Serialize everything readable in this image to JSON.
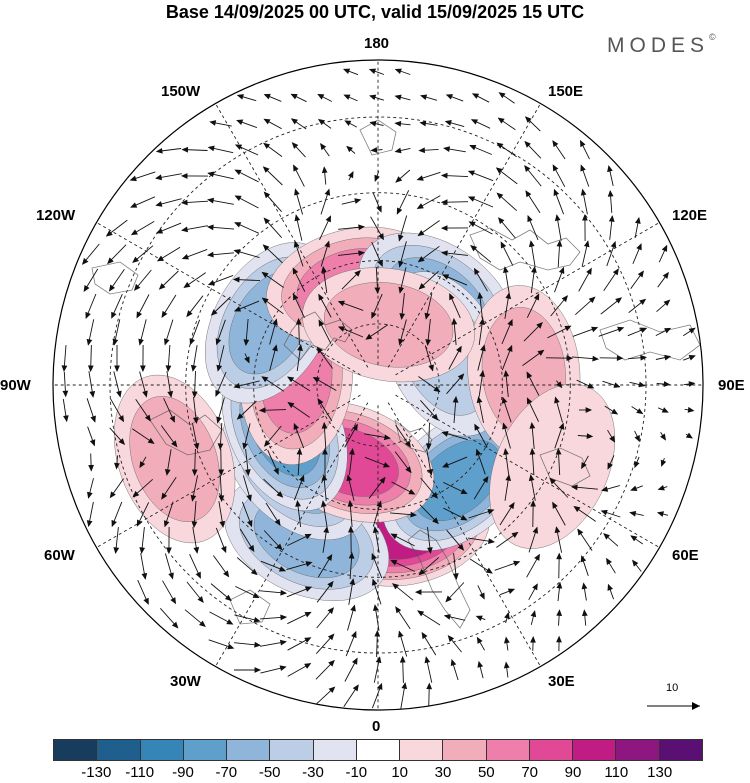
{
  "title": "Base 14/09/2025 00 UTC, valid 15/09/2025 15 UTC",
  "logo_text": "MODES",
  "logo_mark": "©",
  "longitude_labels": {
    "lon_180": "180",
    "lon_150E": "150E",
    "lon_120E": "120E",
    "lon_90E": "90E",
    "lon_60E": "60E",
    "lon_30E": "30E",
    "lon_0": "0",
    "lon_30W": "30W",
    "lon_60W": "60W",
    "lon_90W": "90W",
    "lon_120W": "120W",
    "lon_150W": "150W"
  },
  "vector_scale": {
    "value": "10"
  },
  "colorbar": {
    "colors": [
      "#173c5e",
      "#1f5f8e",
      "#3585b8",
      "#5f9fcb",
      "#8fb6da",
      "#bccde6",
      "#e2e3f1",
      "#ffffff",
      "#f8d8dc",
      "#f2adbb",
      "#ee7fab",
      "#e14896",
      "#c01c83",
      "#8d1680",
      "#5a0f73"
    ],
    "tick_labels": [
      "-130",
      "-110",
      "-90",
      "-70",
      "-50",
      "-30",
      "-10",
      "10",
      "30",
      "50",
      "70",
      "90",
      "110",
      "130"
    ]
  },
  "anomaly_centers": [
    {
      "lon": 10,
      "lat": 55,
      "value": 95
    },
    {
      "lon": 40,
      "lat": 60,
      "value": -85
    },
    {
      "lon": -25,
      "lat": 50,
      "value": -65
    },
    {
      "lon": -45,
      "lat": 62,
      "value": -55
    },
    {
      "lon": -20,
      "lat": 70,
      "value": 70
    },
    {
      "lon": -65,
      "lat": 65,
      "value": -75
    },
    {
      "lon": -95,
      "lat": 70,
      "value": 50
    },
    {
      "lon": -120,
      "lat": 60,
      "value": -55
    },
    {
      "lon": -165,
      "lat": 65,
      "value": 55
    },
    {
      "lon": 145,
      "lat": 65,
      "value": -50
    },
    {
      "lon": 115,
      "lat": 72,
      "value": -45
    },
    {
      "lon": 95,
      "lat": 55,
      "value": 40
    },
    {
      "lon": -70,
      "lat": 40,
      "value": 30
    },
    {
      "lon": 65,
      "lat": 45,
      "value": 25
    },
    {
      "lon": 170,
      "lat": 75,
      "value": 30
    }
  ]
}
